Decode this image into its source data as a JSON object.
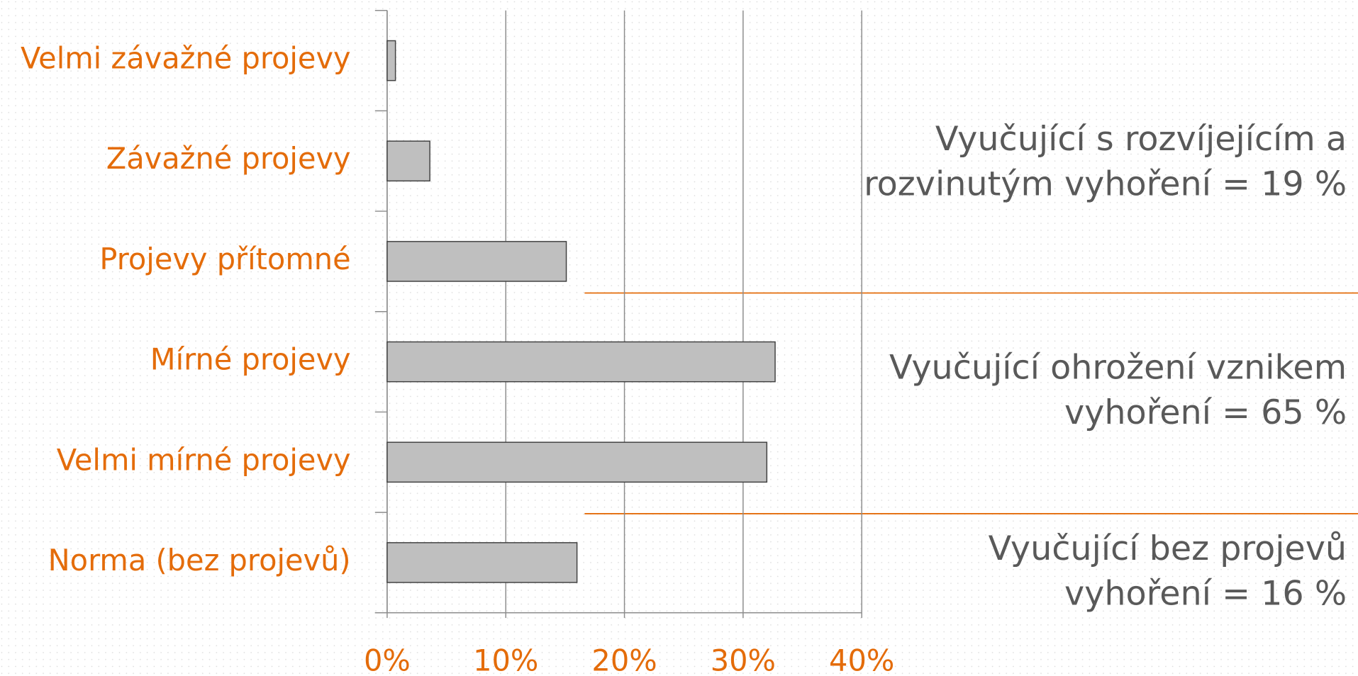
{
  "chart_data": {
    "type": "bar",
    "orientation": "horizontal",
    "categories": [
      "Velmi závažné projevy",
      "Závažné projevy",
      "Projevy přítomné",
      "Mírné projevy",
      "Velmi mírné projevy",
      "Norma (bez projevů)"
    ],
    "values": [
      0.7,
      3.6,
      15.1,
      32.7,
      32.0,
      16.0
    ],
    "color": "#bfbfbf",
    "xlim": [
      0,
      40
    ],
    "xticks": [
      {
        "value": 0,
        "label": "0%"
      },
      {
        "value": 10,
        "label": "10%"
      },
      {
        "value": 20,
        "label": "20%"
      },
      {
        "value": 30,
        "label": "30%"
      },
      {
        "value": 40,
        "label": "40%"
      }
    ],
    "grid": true,
    "annotations": [
      [
        "Vyučující s rozvíjejícím a",
        "rozvinutým vyhoření = 19 %"
      ],
      [
        "Vyučující ohrožení vznikem",
        "vyhoření = 65 %"
      ],
      [
        "Vyučující bez projevů",
        "vyhoření = 16 %"
      ]
    ]
  }
}
